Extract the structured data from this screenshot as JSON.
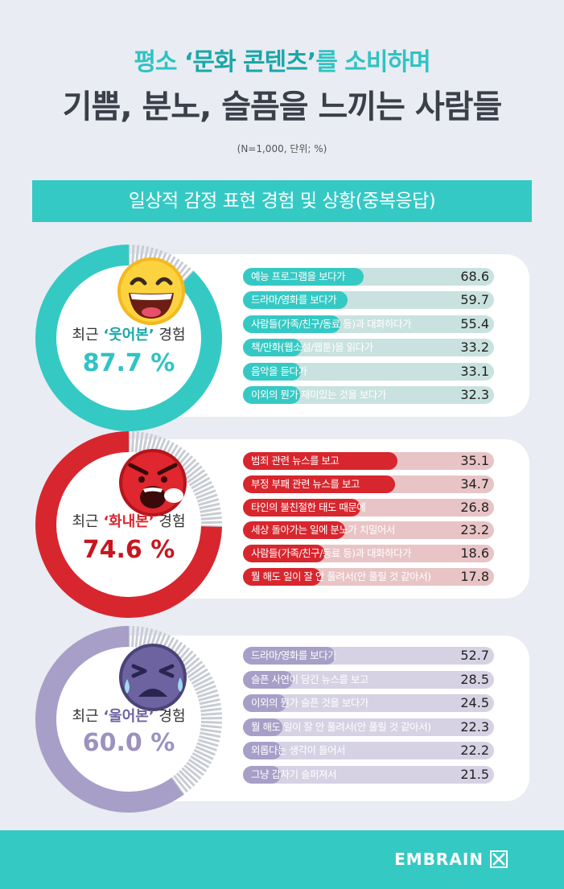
{
  "title": {
    "line1_pre": "평소 ",
    "line1_highlight": "‘문화 콘텐츠’",
    "line1_post": "를 소비하며",
    "line2": "기쁨, 분노, 슬픔을 느끼는 사람들"
  },
  "meta": "(N=1,000, 단위; %)",
  "banner": "일상적 감정 표현 경험 및 상황(중복응답)",
  "brand": "EMBRAIN",
  "colors": {
    "teal": "#35c9c4",
    "red": "#d8262e",
    "purple": "#a79fc7"
  },
  "chart_data": [
    {
      "type": "bar",
      "summary_label_pre": "최근 ",
      "summary_label_q": "‘웃어본’",
      "summary_label_post": " 경험",
      "summary_value": "87.7 %",
      "summary_percent": 87.7,
      "icon": "laughing-face-icon",
      "categories": [
        "예능 프로그램을 보다가",
        "드라마/영화를 보다가",
        "사람들(가족/친구/동료 등)과 대화하다가",
        "책/만화(웹소설/웹툰)을 읽다가",
        "음악을 듣다가",
        "이외의 뭔가 재미있는 것을 보다가"
      ],
      "values": [
        68.6,
        59.7,
        55.4,
        33.2,
        33.1,
        32.3
      ],
      "value_labels": [
        "68.6",
        "59.7",
        "55.4",
        "33.2",
        "33.1",
        "32.3"
      ],
      "xlim": [
        0,
        100
      ]
    },
    {
      "type": "bar",
      "summary_label_pre": "최근 ",
      "summary_label_q": "‘화내본’",
      "summary_label_post": " 경험",
      "summary_value": "74.6 %",
      "summary_percent": 74.6,
      "icon": "angry-face-icon",
      "categories": [
        "범죄 관련 뉴스를 보고",
        "부정 부패 관련 뉴스를 보고",
        "타인의 불친절한 태도 때문에",
        "세상 돌아가는 일에 분노가 치밀어서",
        "사람들(가족/친구/동료 등)과 대화하다가",
        "뭘 해도 일이 잘 안 풀려서(안 풀릴 것 같아서)"
      ],
      "values": [
        35.1,
        34.7,
        26.8,
        23.2,
        18.6,
        17.8
      ],
      "value_labels": [
        "35.1",
        "34.7",
        "26.8",
        "23.2",
        "18.6",
        "17.8"
      ],
      "xlim": [
        0,
        40
      ]
    },
    {
      "type": "bar",
      "summary_label_pre": "최근 ",
      "summary_label_q": "‘울어본’",
      "summary_label_post": " 경험",
      "summary_value": "60.0 %",
      "summary_percent": 60.0,
      "icon": "crying-face-icon",
      "categories": [
        "드라마/영화를 보다가",
        "슬픈 사연이 담긴 뉴스를 보고",
        "이외의 뭔가 슬픈 것을 보다가",
        "뭘 해도 일이 잘 안 풀려서(안 풀릴 것 같아서)",
        "외롭다는 생각이 들어서",
        "그냥 갑자기 슬퍼져서"
      ],
      "values": [
        52.7,
        28.5,
        24.5,
        22.3,
        22.2,
        21.5
      ],
      "value_labels": [
        "52.7",
        "28.5",
        "24.5",
        "22.3",
        "22.2",
        "21.5"
      ],
      "xlim": [
        0,
        100
      ]
    }
  ]
}
